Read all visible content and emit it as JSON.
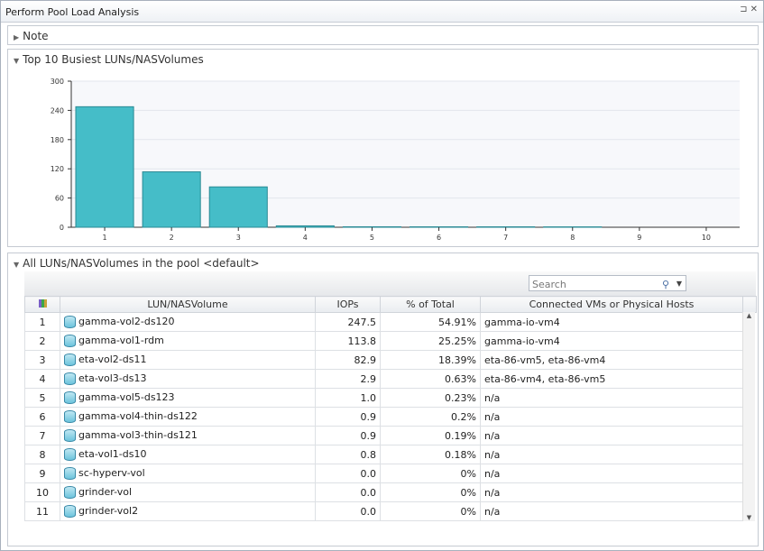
{
  "window": {
    "title": "Perform Pool Load Analysis"
  },
  "note": {
    "label": "Note"
  },
  "chart_section": {
    "label": "Top 10 Busiest LUNs/NASVolumes"
  },
  "chart_data": {
    "type": "bar",
    "categories": [
      "1",
      "2",
      "3",
      "4",
      "5",
      "6",
      "7",
      "8",
      "9",
      "10"
    ],
    "values": [
      247.5,
      113.8,
      82.9,
      2.9,
      1.0,
      0.9,
      0.9,
      0.8,
      0.0,
      0.0
    ],
    "ylim": [
      0,
      300
    ],
    "yticks": [
      0,
      60,
      120,
      180,
      240,
      300
    ],
    "grid": true,
    "color": "#45bdc8"
  },
  "table_section": {
    "label": "All LUNs/NASVolumes in the pool <default>"
  },
  "search": {
    "placeholder": "Search"
  },
  "table": {
    "columns": [
      "",
      "LUN/NASVolume",
      "IOPs",
      "% of Total",
      "Connected VMs or Physical Hosts"
    ],
    "rows": [
      [
        "1",
        "gamma-vol2-ds120",
        "247.5",
        "54.91%",
        "gamma-io-vm4"
      ],
      [
        "2",
        "gamma-vol1-rdm",
        "113.8",
        "25.25%",
        "gamma-io-vm4"
      ],
      [
        "3",
        "eta-vol2-ds11",
        "82.9",
        "18.39%",
        "eta-86-vm5, eta-86-vm4"
      ],
      [
        "4",
        "eta-vol3-ds13",
        "2.9",
        "0.63%",
        "eta-86-vm4, eta-86-vm5"
      ],
      [
        "5",
        "gamma-vol5-ds123",
        "1.0",
        "0.23%",
        "n/a"
      ],
      [
        "6",
        "gamma-vol4-thin-ds122",
        "0.9",
        "0.2%",
        "n/a"
      ],
      [
        "7",
        "gamma-vol3-thin-ds121",
        "0.9",
        "0.19%",
        "n/a"
      ],
      [
        "8",
        "eta-vol1-ds10",
        "0.8",
        "0.18%",
        "n/a"
      ],
      [
        "9",
        "sc-hyperv-vol",
        "0.0",
        "0%",
        "n/a"
      ],
      [
        "10",
        "grinder-vol",
        "0.0",
        "0%",
        "n/a"
      ],
      [
        "11",
        "grinder-vol2",
        "0.0",
        "0%",
        "n/a"
      ]
    ]
  }
}
